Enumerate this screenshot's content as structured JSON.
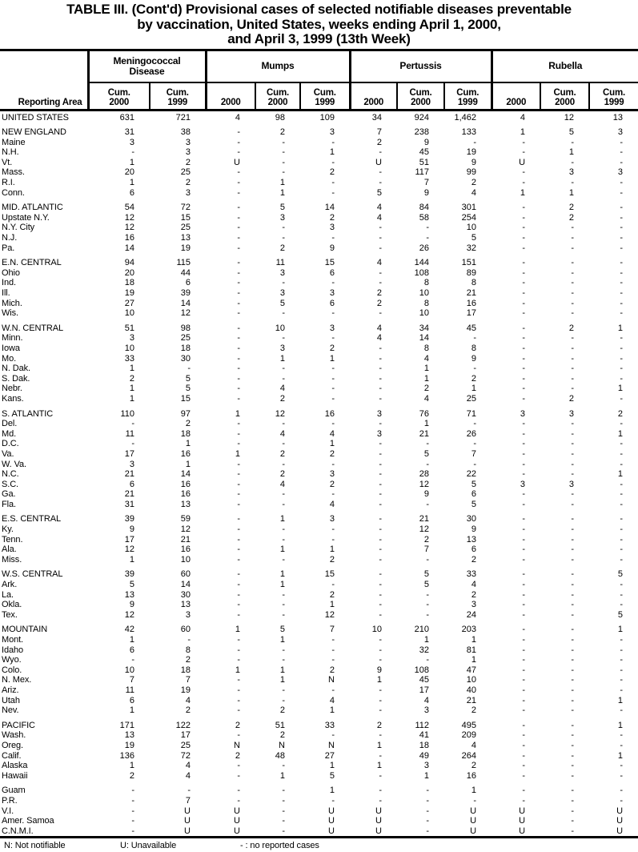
{
  "title": {
    "line1": "TABLE III. (Cont'd) Provisional cases of selected notifiable diseases preventable",
    "line2": "by vaccination, United States, weeks ending April 1, 2000,",
    "line3": "and April 3, 1999 (13th Week)"
  },
  "table": {
    "reporting_area_label": "Reporting Area",
    "groups": [
      {
        "label": "Meningococcal\nDisease",
        "sub": [
          "Cum.\n2000",
          "Cum.\n1999"
        ]
      },
      {
        "label": "Mumps",
        "sub": [
          "2000",
          "Cum.\n2000",
          "Cum.\n1999"
        ]
      },
      {
        "label": "Pertussis",
        "sub": [
          "2000",
          "Cum.\n2000",
          "Cum.\n1999"
        ]
      },
      {
        "label": "Rubella",
        "sub": [
          "2000",
          "Cum.\n2000",
          "Cum.\n1999"
        ]
      }
    ],
    "row_groups": [
      [
        [
          "UNITED STATES",
          "631",
          "721",
          "4",
          "98",
          "109",
          "34",
          "924",
          "1,462",
          "4",
          "12",
          "13"
        ]
      ],
      [
        [
          "NEW ENGLAND",
          "31",
          "38",
          "-",
          "2",
          "3",
          "7",
          "238",
          "133",
          "1",
          "5",
          "3"
        ],
        [
          "Maine",
          "3",
          "3",
          "-",
          "-",
          "-",
          "2",
          "9",
          "-",
          "-",
          "-",
          "-"
        ],
        [
          "N.H.",
          "-",
          "3",
          "-",
          "-",
          "1",
          "-",
          "45",
          "19",
          "-",
          "1",
          "-"
        ],
        [
          "Vt.",
          "1",
          "2",
          "U",
          "-",
          "-",
          "U",
          "51",
          "9",
          "U",
          "-",
          "-"
        ],
        [
          "Mass.",
          "20",
          "25",
          "-",
          "-",
          "2",
          "-",
          "117",
          "99",
          "-",
          "3",
          "3"
        ],
        [
          "R.I.",
          "1",
          "2",
          "-",
          "1",
          "-",
          "-",
          "7",
          "2",
          "-",
          "-",
          "-"
        ],
        [
          "Conn.",
          "6",
          "3",
          "-",
          "1",
          "-",
          "5",
          "9",
          "4",
          "1",
          "1",
          "-"
        ]
      ],
      [
        [
          "MID. ATLANTIC",
          "54",
          "72",
          "-",
          "5",
          "14",
          "4",
          "84",
          "301",
          "-",
          "2",
          "-"
        ],
        [
          "Upstate N.Y.",
          "12",
          "15",
          "-",
          "3",
          "2",
          "4",
          "58",
          "254",
          "-",
          "2",
          "-"
        ],
        [
          "N.Y. City",
          "12",
          "25",
          "-",
          "-",
          "3",
          "-",
          "-",
          "10",
          "-",
          "-",
          "-"
        ],
        [
          "N.J.",
          "16",
          "13",
          "-",
          "-",
          "-",
          "-",
          "-",
          "5",
          "-",
          "-",
          "-"
        ],
        [
          "Pa.",
          "14",
          "19",
          "-",
          "2",
          "9",
          "-",
          "26",
          "32",
          "-",
          "-",
          "-"
        ]
      ],
      [
        [
          "E.N. CENTRAL",
          "94",
          "115",
          "-",
          "11",
          "15",
          "4",
          "144",
          "151",
          "-",
          "-",
          "-"
        ],
        [
          "Ohio",
          "20",
          "44",
          "-",
          "3",
          "6",
          "-",
          "108",
          "89",
          "-",
          "-",
          "-"
        ],
        [
          "Ind.",
          "18",
          "6",
          "-",
          "-",
          "-",
          "-",
          "8",
          "8",
          "-",
          "-",
          "-"
        ],
        [
          "Ill.",
          "19",
          "39",
          "-",
          "3",
          "3",
          "2",
          "10",
          "21",
          "-",
          "-",
          "-"
        ],
        [
          "Mich.",
          "27",
          "14",
          "-",
          "5",
          "6",
          "2",
          "8",
          "16",
          "-",
          "-",
          "-"
        ],
        [
          "Wis.",
          "10",
          "12",
          "-",
          "-",
          "-",
          "-",
          "10",
          "17",
          "-",
          "-",
          "-"
        ]
      ],
      [
        [
          "W.N. CENTRAL",
          "51",
          "98",
          "-",
          "10",
          "3",
          "4",
          "34",
          "45",
          "-",
          "2",
          "1"
        ],
        [
          "Minn.",
          "3",
          "25",
          "-",
          "-",
          "-",
          "4",
          "14",
          "-",
          "-",
          "-",
          "-"
        ],
        [
          "Iowa",
          "10",
          "18",
          "-",
          "3",
          "2",
          "-",
          "8",
          "8",
          "-",
          "-",
          "-"
        ],
        [
          "Mo.",
          "33",
          "30",
          "-",
          "1",
          "1",
          "-",
          "4",
          "9",
          "-",
          "-",
          "-"
        ],
        [
          "N. Dak.",
          "1",
          "-",
          "-",
          "-",
          "-",
          "-",
          "1",
          "-",
          "-",
          "-",
          "-"
        ],
        [
          "S. Dak.",
          "2",
          "5",
          "-",
          "-",
          "-",
          "-",
          "1",
          "2",
          "-",
          "-",
          "-"
        ],
        [
          "Nebr.",
          "1",
          "5",
          "-",
          "4",
          "-",
          "-",
          "2",
          "1",
          "-",
          "-",
          "1"
        ],
        [
          "Kans.",
          "1",
          "15",
          "-",
          "2",
          "-",
          "-",
          "4",
          "25",
          "-",
          "2",
          "-"
        ]
      ],
      [
        [
          "S. ATLANTIC",
          "110",
          "97",
          "1",
          "12",
          "16",
          "3",
          "76",
          "71",
          "3",
          "3",
          "2"
        ],
        [
          "Del.",
          "-",
          "2",
          "-",
          "-",
          "-",
          "-",
          "1",
          "-",
          "-",
          "-",
          "-"
        ],
        [
          "Md.",
          "11",
          "18",
          "-",
          "4",
          "4",
          "3",
          "21",
          "26",
          "-",
          "-",
          "1"
        ],
        [
          "D.C.",
          "-",
          "1",
          "-",
          "-",
          "1",
          "-",
          "-",
          "-",
          "-",
          "-",
          "-"
        ],
        [
          "Va.",
          "17",
          "16",
          "1",
          "2",
          "2",
          "-",
          "5",
          "7",
          "-",
          "-",
          "-"
        ],
        [
          "W. Va.",
          "3",
          "1",
          "-",
          "-",
          "-",
          "-",
          "-",
          "-",
          "-",
          "-",
          "-"
        ],
        [
          "N.C.",
          "21",
          "14",
          "-",
          "2",
          "3",
          "-",
          "28",
          "22",
          "-",
          "-",
          "1"
        ],
        [
          "S.C.",
          "6",
          "16",
          "-",
          "4",
          "2",
          "-",
          "12",
          "5",
          "3",
          "3",
          "-"
        ],
        [
          "Ga.",
          "21",
          "16",
          "-",
          "-",
          "-",
          "-",
          "9",
          "6",
          "-",
          "-",
          "-"
        ],
        [
          "Fla.",
          "31",
          "13",
          "-",
          "-",
          "4",
          "-",
          "-",
          "5",
          "-",
          "-",
          "-"
        ]
      ],
      [
        [
          "E.S. CENTRAL",
          "39",
          "59",
          "-",
          "1",
          "3",
          "-",
          "21",
          "30",
          "-",
          "-",
          "-"
        ],
        [
          "Ky.",
          "9",
          "12",
          "-",
          "-",
          "-",
          "-",
          "12",
          "9",
          "-",
          "-",
          "-"
        ],
        [
          "Tenn.",
          "17",
          "21",
          "-",
          "-",
          "-",
          "-",
          "2",
          "13",
          "-",
          "-",
          "-"
        ],
        [
          "Ala.",
          "12",
          "16",
          "-",
          "1",
          "1",
          "-",
          "7",
          "6",
          "-",
          "-",
          "-"
        ],
        [
          "Miss.",
          "1",
          "10",
          "-",
          "-",
          "2",
          "-",
          "-",
          "2",
          "-",
          "-",
          "-"
        ]
      ],
      [
        [
          "W.S. CENTRAL",
          "39",
          "60",
          "-",
          "1",
          "15",
          "-",
          "5",
          "33",
          "-",
          "-",
          "5"
        ],
        [
          "Ark.",
          "5",
          "14",
          "-",
          "1",
          "-",
          "-",
          "5",
          "4",
          "-",
          "-",
          "-"
        ],
        [
          "La.",
          "13",
          "30",
          "-",
          "-",
          "2",
          "-",
          "-",
          "2",
          "-",
          "-",
          "-"
        ],
        [
          "Okla.",
          "9",
          "13",
          "-",
          "-",
          "1",
          "-",
          "-",
          "3",
          "-",
          "-",
          "-"
        ],
        [
          "Tex.",
          "12",
          "3",
          "-",
          "-",
          "12",
          "-",
          "-",
          "24",
          "-",
          "-",
          "5"
        ]
      ],
      [
        [
          "MOUNTAIN",
          "42",
          "60",
          "1",
          "5",
          "7",
          "10",
          "210",
          "203",
          "-",
          "-",
          "1"
        ],
        [
          "Mont.",
          "1",
          "-",
          "-",
          "1",
          "-",
          "-",
          "1",
          "1",
          "-",
          "-",
          "-"
        ],
        [
          "Idaho",
          "6",
          "8",
          "-",
          "-",
          "-",
          "-",
          "32",
          "81",
          "-",
          "-",
          "-"
        ],
        [
          "Wyo.",
          "-",
          "2",
          "-",
          "-",
          "-",
          "-",
          "-",
          "1",
          "-",
          "-",
          "-"
        ],
        [
          "Colo.",
          "10",
          "18",
          "1",
          "1",
          "2",
          "9",
          "108",
          "47",
          "-",
          "-",
          "-"
        ],
        [
          "N. Mex.",
          "7",
          "7",
          "-",
          "1",
          "N",
          "1",
          "45",
          "10",
          "-",
          "-",
          "-"
        ],
        [
          "Ariz.",
          "11",
          "19",
          "-",
          "-",
          "-",
          "-",
          "17",
          "40",
          "-",
          "-",
          "-"
        ],
        [
          "Utah",
          "6",
          "4",
          "-",
          "-",
          "4",
          "-",
          "4",
          "21",
          "-",
          "-",
          "1"
        ],
        [
          "Nev.",
          "1",
          "2",
          "-",
          "2",
          "1",
          "-",
          "3",
          "2",
          "-",
          "-",
          "-"
        ]
      ],
      [
        [
          "PACIFIC",
          "171",
          "122",
          "2",
          "51",
          "33",
          "2",
          "112",
          "495",
          "-",
          "-",
          "1"
        ],
        [
          "Wash.",
          "13",
          "17",
          "-",
          "2",
          "-",
          "-",
          "41",
          "209",
          "-",
          "-",
          "-"
        ],
        [
          "Oreg.",
          "19",
          "25",
          "N",
          "N",
          "N",
          "1",
          "18",
          "4",
          "-",
          "-",
          "-"
        ],
        [
          "Calif.",
          "136",
          "72",
          "2",
          "48",
          "27",
          "-",
          "49",
          "264",
          "-",
          "-",
          "1"
        ],
        [
          "Alaska",
          "1",
          "4",
          "-",
          "-",
          "1",
          "1",
          "3",
          "2",
          "-",
          "-",
          "-"
        ],
        [
          "Hawaii",
          "2",
          "4",
          "-",
          "1",
          "5",
          "-",
          "1",
          "16",
          "-",
          "-",
          "-"
        ]
      ],
      [
        [
          "Guam",
          "-",
          "-",
          "-",
          "-",
          "1",
          "-",
          "-",
          "1",
          "-",
          "-",
          "-"
        ],
        [
          "P.R.",
          "-",
          "7",
          "-",
          "-",
          "-",
          "-",
          "-",
          "-",
          "-",
          "-",
          "-"
        ],
        [
          "V.I.",
          "-",
          "U",
          "U",
          "-",
          "U",
          "U",
          "-",
          "U",
          "U",
          "-",
          "U"
        ],
        [
          "Amer. Samoa",
          "-",
          "U",
          "U",
          "-",
          "U",
          "U",
          "-",
          "U",
          "U",
          "-",
          "U"
        ],
        [
          "C.N.M.I.",
          "-",
          "U",
          "U",
          "-",
          "U",
          "U",
          "-",
          "U",
          "U",
          "-",
          "U"
        ]
      ]
    ]
  },
  "footer": {
    "items": [
      "N: Not notifiable",
      "U: Unavailable",
      "- : no reported cases"
    ]
  }
}
